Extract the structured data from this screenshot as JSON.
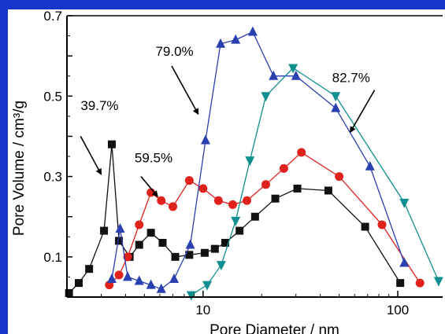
{
  "chart_data": {
    "type": "line",
    "xscale": "log",
    "xlim": [
      2,
      170
    ],
    "ylim": [
      0,
      0.7
    ],
    "xlabel": "Pore Diameter / nm",
    "ylabel": "Pore Volume / cm³/g",
    "xticks": [
      {
        "value": 10,
        "label": "10"
      },
      {
        "value": 100,
        "label": "100"
      }
    ],
    "yticks": [
      {
        "value": 0.1,
        "label": "0.1"
      },
      {
        "value": 0.3,
        "label": "0.3"
      },
      {
        "value": 0.5,
        "label": "0.5"
      },
      {
        "value": 0.7,
        "label": "0.7"
      }
    ],
    "colors": {
      "black": "#111111",
      "red": "#e0221c",
      "blue": "#2a3fb0",
      "teal": "#0f8f8f",
      "frame": "#1636c8"
    },
    "series": [
      {
        "color": "#111111",
        "marker": "square",
        "x": [
          2.05,
          2.3,
          2.6,
          3.1,
          3.4,
          3.7,
          4.2,
          4.7,
          5.4,
          6.2,
          7.2,
          8.5,
          10.2,
          11.5,
          13,
          15.4,
          18.5,
          23.5,
          30.5,
          44,
          68,
          103
        ],
        "y": [
          0.01,
          0.035,
          0.07,
          0.165,
          0.38,
          0.14,
          0.1,
          0.13,
          0.16,
          0.135,
          0.1,
          0.105,
          0.11,
          0.12,
          0.135,
          0.165,
          0.2,
          0.245,
          0.27,
          0.265,
          0.175,
          0.035
        ]
      },
      {
        "color": "#e0221c",
        "marker": "circle",
        "x": [
          3.3,
          3.7,
          4.1,
          4.7,
          5.4,
          6.1,
          7,
          8.5,
          10,
          12,
          14.2,
          16.8,
          21,
          26,
          32,
          50,
          83,
          130
        ],
        "y": [
          0.03,
          0.055,
          0.1,
          0.18,
          0.26,
          0.24,
          0.225,
          0.29,
          0.27,
          0.24,
          0.23,
          0.24,
          0.28,
          0.32,
          0.36,
          0.3,
          0.18,
          0.035
        ]
      },
      {
        "color": "#2a3fb0",
        "marker": "triangle-up",
        "x": [
          3.4,
          3.75,
          4.1,
          4.7,
          5.4,
          6.1,
          7.1,
          8.6,
          10.3,
          12.3,
          14.7,
          18,
          23,
          30,
          48,
          72,
          108
        ],
        "y": [
          0.045,
          0.17,
          0.05,
          0.04,
          0.03,
          0.02,
          0.045,
          0.13,
          0.39,
          0.63,
          0.64,
          0.66,
          0.55,
          0.55,
          0.47,
          0.325,
          0.085
        ]
      },
      {
        "color": "#0f8f8f",
        "marker": "triangle-down",
        "x": [
          8.7,
          10.5,
          12.4,
          14.7,
          17.4,
          21,
          29,
          48,
          108,
          162
        ],
        "y": [
          0.005,
          0.03,
          0.08,
          0.19,
          0.34,
          0.5,
          0.57,
          0.5,
          0.235,
          0.04
        ]
      }
    ],
    "annotations": [
      {
        "text": "39.7%",
        "tx": 2.35,
        "ty": 0.465,
        "ax1": 2.35,
        "ay1": 0.4,
        "ax2": 3.0,
        "ay2": 0.305
      },
      {
        "text": "59.5%",
        "tx": 4.45,
        "ty": 0.335,
        "ax1": 4.8,
        "ay1": 0.3,
        "ax2": 5.85,
        "ay2": 0.25
      },
      {
        "text": "79.0%",
        "tx": 5.7,
        "ty": 0.6,
        "ax1": 6.9,
        "ay1": 0.575,
        "ax2": 9.45,
        "ay2": 0.455
      },
      {
        "text": "82.7%",
        "tx": 46,
        "ty": 0.535,
        "ax1": 76,
        "ay1": 0.515,
        "ax2": 57,
        "ay2": 0.41
      }
    ]
  }
}
